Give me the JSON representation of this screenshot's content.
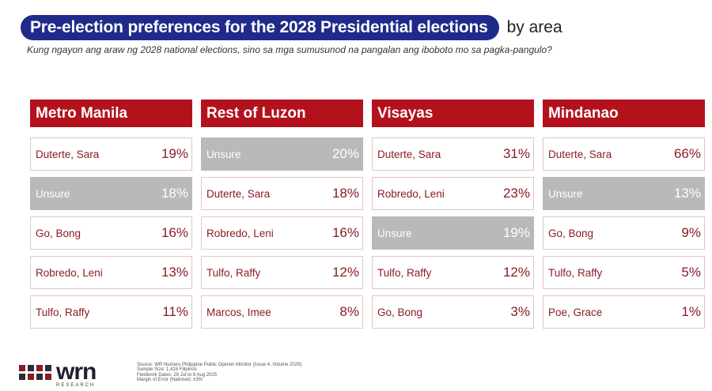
{
  "title": "Pre-election preferences for the 2028 Presidential elections",
  "title_suffix": "by area",
  "subtitle": "Kung ngayon ang araw ng 2028 national elections, sino sa mga sumusunod na pangalan ang iboboto mo sa pagka-pangulo?",
  "colors": {
    "title_bg": "#1f2a8a",
    "header_bg": "#b3121d",
    "candidate_text": "#8a1c24",
    "unsure_bg": "#b9b9b9"
  },
  "chart_data": {
    "type": "table",
    "unit": "%",
    "areas": [
      {
        "name": "Metro Manila",
        "items": [
          {
            "label": "Duterte, Sara",
            "value": 19,
            "value_text": "19%"
          },
          {
            "label": "Unsure",
            "value": 18,
            "value_text": "18%",
            "unsure": true
          },
          {
            "label": "Go, Bong",
            "value": 16,
            "value_text": "16%"
          },
          {
            "label": "Robredo, Leni",
            "value": 13,
            "value_text": "13%"
          },
          {
            "label": "Tulfo, Raffy",
            "value": 11,
            "value_text": "11%"
          }
        ]
      },
      {
        "name": "Rest of Luzon",
        "items": [
          {
            "label": "Unsure",
            "value": 20,
            "value_text": "20%",
            "unsure": true
          },
          {
            "label": "Duterte, Sara",
            "value": 18,
            "value_text": "18%"
          },
          {
            "label": "Robredo, Leni",
            "value": 16,
            "value_text": "16%"
          },
          {
            "label": "Tulfo, Raffy",
            "value": 12,
            "value_text": "12%"
          },
          {
            "label": "Marcos, Imee",
            "value": 8,
            "value_text": "8%"
          }
        ]
      },
      {
        "name": "Visayas",
        "items": [
          {
            "label": "Duterte, Sara",
            "value": 31,
            "value_text": "31%"
          },
          {
            "label": "Robredo, Leni",
            "value": 23,
            "value_text": "23%"
          },
          {
            "label": "Unsure",
            "value": 19,
            "value_text": "19%",
            "unsure": true
          },
          {
            "label": "Tulfo, Raffy",
            "value": 12,
            "value_text": "12%"
          },
          {
            "label": "Go, Bong",
            "value": 3,
            "value_text": "3%"
          }
        ]
      },
      {
        "name": "Mindanao",
        "items": [
          {
            "label": "Duterte, Sara",
            "value": 66,
            "value_text": "66%"
          },
          {
            "label": "Unsure",
            "value": 13,
            "value_text": "13%",
            "unsure": true
          },
          {
            "label": "Go, Bong",
            "value": 9,
            "value_text": "9%"
          },
          {
            "label": "Tulfo, Raffy",
            "value": 5,
            "value_text": "5%"
          },
          {
            "label": "Poe, Grace",
            "value": 1,
            "value_text": "1%"
          }
        ]
      }
    ]
  },
  "logo": {
    "word": "wrn",
    "sub": "RESEARCH"
  },
  "source_lines": [
    "Source: WR Numero Philippine Public Opinion Monitor (Issue 4, Volume 2025)",
    "Sample Size: 1,418 Filipinos",
    "Fieldwork Dates: 29 Jul to 6 Aug 2025",
    "Margin of Error (National): ±3%"
  ]
}
